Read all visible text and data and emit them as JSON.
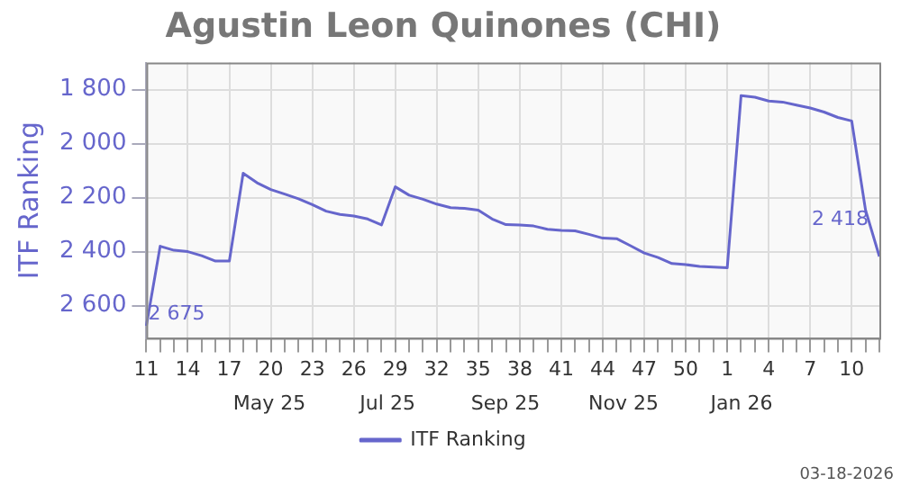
{
  "chart_data": {
    "type": "line",
    "title": "Agustin Leon Quinones (CHI)",
    "ylabel": "ITF Ranking",
    "categories": [
      "11",
      null,
      null,
      "14",
      null,
      null,
      "17",
      null,
      null,
      "20",
      null,
      null,
      "23",
      null,
      null,
      "26",
      null,
      null,
      "29",
      null,
      null,
      "32",
      null,
      null,
      "35",
      null,
      null,
      "38",
      null,
      null,
      "41",
      null,
      null,
      "44",
      null,
      null,
      "47",
      null,
      null,
      "50",
      null,
      null,
      "1",
      null,
      null,
      "4",
      null,
      null,
      "7",
      null,
      null,
      "10",
      null,
      null
    ],
    "series": [
      {
        "name": "ITF Ranking",
        "color": "#6666cc",
        "values": [
          2675,
          2380,
          2395,
          2400,
          2415,
          2435,
          2435,
          2110,
          2145,
          2170,
          2187,
          2204,
          2226,
          2250,
          2262,
          2268,
          2279,
          2301,
          2160,
          2191,
          2206,
          2224,
          2237,
          2240,
          2246,
          2279,
          2300,
          2301,
          2305,
          2317,
          2321,
          2323,
          2336,
          2350,
          2352,
          2378,
          2405,
          2422,
          2444,
          2448,
          2455,
          2457,
          2460,
          1822,
          1828,
          1842,
          1846,
          1857,
          1868,
          1883,
          1903,
          1916,
          2246,
          2418
        ],
        "value_labels": [
          "2 675",
          null,
          null,
          null,
          null,
          null,
          null,
          null,
          null,
          null,
          null,
          null,
          null,
          null,
          null,
          null,
          null,
          null,
          null,
          null,
          null,
          null,
          null,
          null,
          null,
          null,
          null,
          null,
          null,
          null,
          null,
          null,
          null,
          null,
          null,
          null,
          null,
          null,
          null,
          null,
          null,
          null,
          null,
          null,
          null,
          null,
          null,
          null,
          null,
          null,
          null,
          null,
          null,
          "2 418"
        ]
      }
    ],
    "ylim": [
      2720,
      1700
    ],
    "yticks": [
      {
        "value": 1800,
        "label": "1 800"
      },
      {
        "value": 2000,
        "label": "2 000"
      },
      {
        "value": 2200,
        "label": "2 200"
      },
      {
        "value": 2400,
        "label": "2 400"
      },
      {
        "value": 2600,
        "label": "2 600"
      }
    ],
    "grid": true,
    "legend": "bottom",
    "marker": "none",
    "line_style": "solid",
    "annotations": [
      "May 25",
      "Jul 25",
      "Sep 25",
      "Nov 25",
      "Jan 26",
      "03-18-2026"
    ]
  }
}
